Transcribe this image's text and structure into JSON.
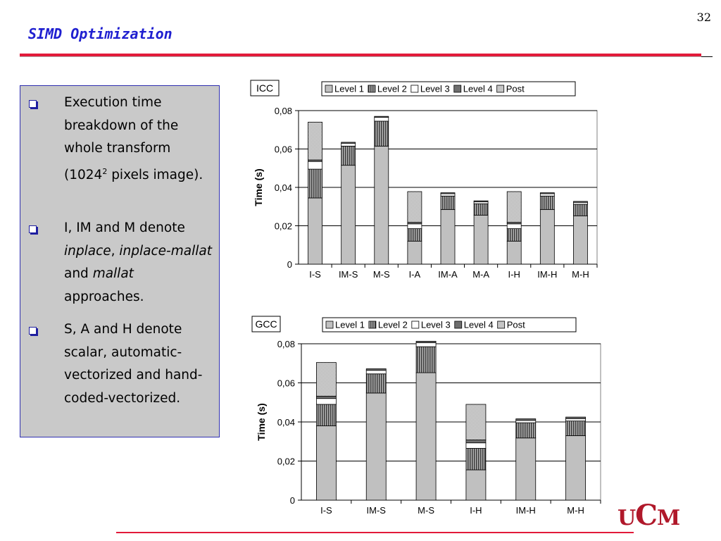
{
  "slide": {
    "number": "32",
    "title": "SIMD Optimization",
    "logo_text": "UCM"
  },
  "bullets": [
    {
      "parts": [
        {
          "text": "Execution time breakdown of the whole transform (1024"
        },
        {
          "text": "2",
          "sup": true
        },
        {
          "text": " pixels image)."
        }
      ]
    },
    {
      "parts": [
        {
          "text": "I, IM and M denote "
        },
        {
          "text": "inplace",
          "italic": true
        },
        {
          "text": ", "
        },
        {
          "text": "inplace-mallat",
          "italic": true
        },
        {
          "text": " and "
        },
        {
          "text": "mallat",
          "italic": true
        },
        {
          "text": " approaches."
        }
      ]
    },
    {
      "parts": [
        {
          "text": "S, A and H denote scalar, automatic-vectorized and hand-coded-vectorized."
        }
      ]
    }
  ],
  "legend_colors": {
    "Level 1": "#c0c0c0",
    "Level 2": "#8a8a8a",
    "Level 3": "#ffffff",
    "Level 4": "#6e6e6e",
    "Post": "#d8d8d8"
  },
  "chart_data": [
    {
      "type": "bar",
      "stacked": true,
      "title": "ICC",
      "xlabel": "",
      "ylabel": "Time (s)",
      "ylim": [
        0,
        0.08
      ],
      "yticks": [
        "0",
        "0,02",
        "0,04",
        "0,06",
        "0,08"
      ],
      "legend_position": "top",
      "grid": true,
      "categories": [
        "I-S",
        "IM-S",
        "M-S",
        "I-A",
        "IM-A",
        "M-A",
        "I-H",
        "IM-H",
        "M-H"
      ],
      "series": [
        {
          "name": "Level 1",
          "values": [
            0.0345,
            0.0515,
            0.0615,
            0.012,
            0.0285,
            0.0255,
            0.012,
            0.0285,
            0.0252
          ]
        },
        {
          "name": "Level 2",
          "values": [
            0.015,
            0.01,
            0.013,
            0.0065,
            0.007,
            0.006,
            0.0065,
            0.007,
            0.006
          ]
        },
        {
          "name": "Level 3",
          "values": [
            0.004,
            0.0015,
            0.002,
            0.0025,
            0.0012,
            0.001,
            0.0025,
            0.0012,
            0.001
          ]
        },
        {
          "name": "Level 4",
          "values": [
            0.0008,
            0.0005,
            0.0005,
            0.0008,
            0.0005,
            0.0005,
            0.0008,
            0.0005,
            0.0005
          ]
        },
        {
          "name": "Post",
          "values": [
            0.0197,
            0.0,
            0.0,
            0.016,
            0.0,
            0.0,
            0.016,
            0.0,
            0.0
          ]
        }
      ]
    },
    {
      "type": "bar",
      "stacked": true,
      "title": "GCC",
      "xlabel": "",
      "ylabel": "Time (s)",
      "ylim": [
        0,
        0.08
      ],
      "yticks": [
        "0",
        "0,02",
        "0,04",
        "0,06",
        "0,08"
      ],
      "legend_position": "top",
      "grid": true,
      "categories": [
        "I-S",
        "IM-S",
        "M-S",
        "I-H",
        "IM-H",
        "M-H"
      ],
      "series": [
        {
          "name": "Level 1",
          "values": [
            0.038,
            0.0548,
            0.0652,
            0.0155,
            0.0318,
            0.033
          ]
        },
        {
          "name": "Level 2",
          "values": [
            0.011,
            0.0098,
            0.0133,
            0.011,
            0.0078,
            0.0075
          ]
        },
        {
          "name": "Level 3",
          "values": [
            0.003,
            0.0018,
            0.002,
            0.0028,
            0.0012,
            0.0012
          ]
        },
        {
          "name": "Level 4",
          "values": [
            0.0012,
            0.0008,
            0.0008,
            0.0015,
            0.0008,
            0.0008
          ]
        },
        {
          "name": "Post",
          "values": [
            0.0172,
            0.0,
            0.0,
            0.0182,
            0.0,
            0.0
          ]
        }
      ]
    }
  ]
}
